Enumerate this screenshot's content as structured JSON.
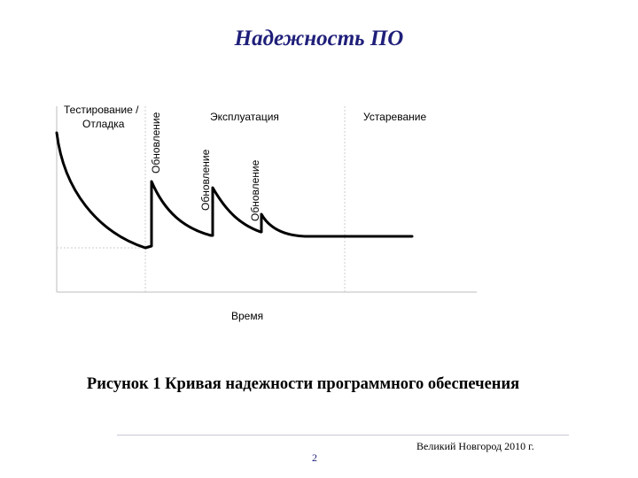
{
  "slide": {
    "title": "Надежность ПО",
    "caption": "Рисунок 1 Кривая надежности программного обеспечения",
    "page_number": "2",
    "footer": "Великий Новгород 2010 г."
  },
  "diagram": {
    "phases": {
      "testing_line1": "Тестирование /",
      "testing_line2": "Отладка",
      "operation": "Эксплуатация",
      "obsolescence": "Устаревание"
    },
    "update_label": "Обновление",
    "x_axis_label": "Время",
    "colors": {
      "curve": "#000000",
      "axis": "#bdbdbd",
      "divider": "#cccccc"
    }
  }
}
